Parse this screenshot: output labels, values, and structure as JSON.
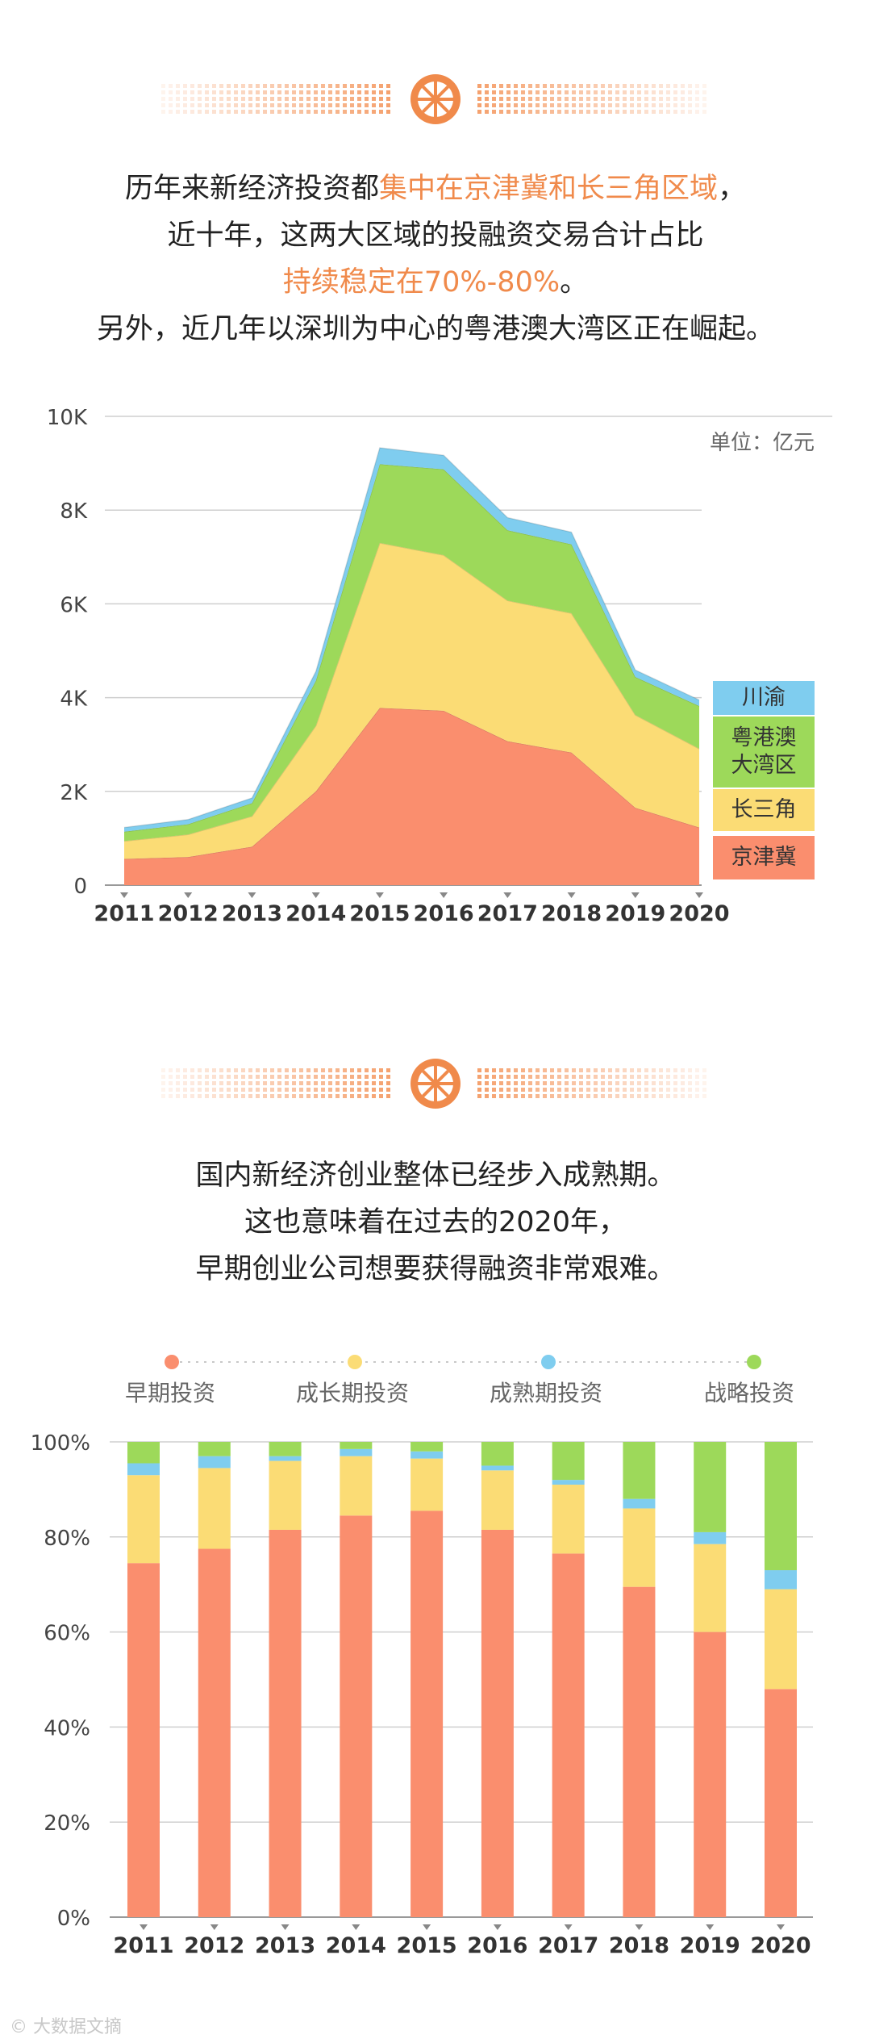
{
  "colors": {
    "accent": "#F08A4B",
    "jingjinji": "#FA8E6E",
    "changsanjiao": "#FBDC75",
    "yuegangao": "#9DD95A",
    "chuanyu": "#7FCDEF",
    "early": "#FA8E6E",
    "growth": "#FBDC75",
    "mature": "#7FCDEF",
    "strategic": "#9DD95A"
  },
  "section1": {
    "intro_lines": [
      {
        "parts": [
          {
            "text": "历年来新经济投资都",
            "hl": false
          },
          {
            "text": "集中在京津冀和长三角区域",
            "hl": true
          },
          {
            "text": "，",
            "hl": false
          }
        ]
      },
      {
        "parts": [
          {
            "text": "近十年，这两大区域的投融资交易合计占比",
            "hl": false
          }
        ]
      },
      {
        "parts": [
          {
            "text": "持续稳定在70%-80%",
            "hl": true
          },
          {
            "text": "。",
            "hl": false
          }
        ]
      },
      {
        "parts": [
          {
            "text": "另外，近几年以深圳为中心的粤港澳大湾区正在崛起。",
            "hl": false
          }
        ]
      }
    ]
  },
  "section2": {
    "intro_lines": [
      {
        "parts": [
          {
            "text": "国内新经济创业整体已经步入成熟期。",
            "hl": false
          }
        ]
      },
      {
        "parts": [
          {
            "text": "这也意味着在过去的2020年，",
            "hl": false
          }
        ]
      },
      {
        "parts": [
          {
            "text": "早期创业公司想要获得融资非常艰难。",
            "hl": false
          }
        ]
      }
    ]
  },
  "chart_data": [
    {
      "type": "area",
      "stacked": true,
      "unit_label": "单位：亿元",
      "x": [
        "2011",
        "2012",
        "2013",
        "2014",
        "2015",
        "2016",
        "2017",
        "2018",
        "2019",
        "2020"
      ],
      "ylim": [
        0,
        10000
      ],
      "yticks": [
        {
          "value": 0,
          "label": "0"
        },
        {
          "value": 2000,
          "label": "2K"
        },
        {
          "value": 4000,
          "label": "4K"
        },
        {
          "value": 6000,
          "label": "6K"
        },
        {
          "value": 8000,
          "label": "8K"
        },
        {
          "value": 10000,
          "label": "10K"
        }
      ],
      "series": [
        {
          "name": "京津冀",
          "color_key": "jingjinji",
          "values": [
            560,
            600,
            820,
            2000,
            3780,
            3720,
            3070,
            2830,
            1650,
            1230
          ]
        },
        {
          "name": "长三角",
          "color_key": "changsanjiao",
          "values": [
            380,
            480,
            650,
            1400,
            3520,
            3320,
            3000,
            2970,
            1980,
            1680
          ]
        },
        {
          "name": "粤港澳大湾区",
          "color_key": "yuegangao",
          "values": [
            200,
            220,
            280,
            960,
            1680,
            1830,
            1500,
            1470,
            810,
            910
          ]
        },
        {
          "name": "川渝",
          "color_key": "chuanyu",
          "values": [
            90,
            100,
            110,
            200,
            350,
            300,
            270,
            260,
            150,
            130
          ]
        }
      ],
      "legend": [
        {
          "label": "川渝",
          "color_key": "chuanyu"
        },
        {
          "label": "粤港澳大湾区",
          "display": "粤港澳\n大湾区",
          "color_key": "yuegangao"
        },
        {
          "label": "长三角",
          "color_key": "changsanjiao"
        },
        {
          "label": "京津冀",
          "color_key": "jingjinji"
        }
      ],
      "legend_placement": "right-bottom",
      "grid": true
    },
    {
      "type": "bar",
      "stacked": true,
      "percent": true,
      "categories": [
        "2011",
        "2012",
        "2013",
        "2014",
        "2015",
        "2016",
        "2017",
        "2018",
        "2019",
        "2020"
      ],
      "ylim": [
        0,
        100
      ],
      "yticks": [
        {
          "value": 0,
          "label": "0%"
        },
        {
          "value": 20,
          "label": "20%"
        },
        {
          "value": 40,
          "label": "40%"
        },
        {
          "value": 60,
          "label": "60%"
        },
        {
          "value": 80,
          "label": "80%"
        },
        {
          "value": 100,
          "label": "100%"
        }
      ],
      "series": [
        {
          "name": "早期投资",
          "color_key": "early",
          "values": [
            74.5,
            77.5,
            81.5,
            84.5,
            85.5,
            81.5,
            76.5,
            69.5,
            60,
            48
          ]
        },
        {
          "name": "成长期投资",
          "color_key": "growth",
          "values": [
            18.5,
            17,
            14.5,
            12.5,
            11,
            12.5,
            14.5,
            16.5,
            18.5,
            21
          ]
        },
        {
          "name": "成熟期投资",
          "color_key": "mature",
          "values": [
            2.5,
            2.5,
            1,
            1.5,
            1.5,
            1,
            1,
            2,
            2.5,
            4
          ]
        },
        {
          "name": "战略投资",
          "color_key": "strategic",
          "values": [
            4.5,
            3,
            3,
            1.5,
            2,
            5,
            8,
            12,
            19,
            27
          ]
        }
      ],
      "legend_placement": "top",
      "grid": true
    }
  ],
  "watermark": "© 大数据文摘"
}
